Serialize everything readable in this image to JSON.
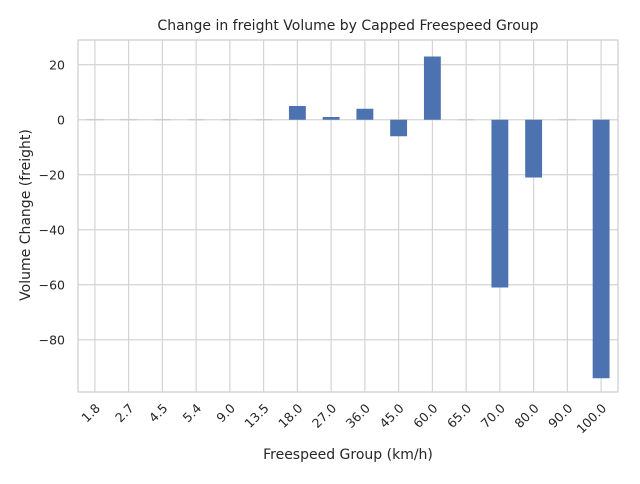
{
  "chart_data": {
    "type": "bar",
    "title": "Change in freight Volume by Capped Freespeed Group",
    "xlabel": "Freespeed Group (km/h)",
    "ylabel": "Volume Change (freight)",
    "categories": [
      "1.8",
      "2.7",
      "4.5",
      "5.4",
      "9.0",
      "13.5",
      "18.0",
      "27.0",
      "36.0",
      "45.0",
      "60.0",
      "65.0",
      "70.0",
      "80.0",
      "90.0",
      "100.0"
    ],
    "values": [
      0,
      0,
      0,
      0,
      0,
      0,
      5,
      1,
      4,
      -6,
      23,
      0,
      -61,
      -21,
      0,
      -94
    ],
    "ylim": [
      -99,
      29
    ],
    "yticks": [
      20,
      0,
      -20,
      -40,
      -60,
      -80
    ],
    "ytick_labels": [
      "20",
      "0",
      "−20",
      "−40",
      "−60",
      "−80"
    ],
    "grid": true,
    "bar_color": "#4c72b0"
  }
}
